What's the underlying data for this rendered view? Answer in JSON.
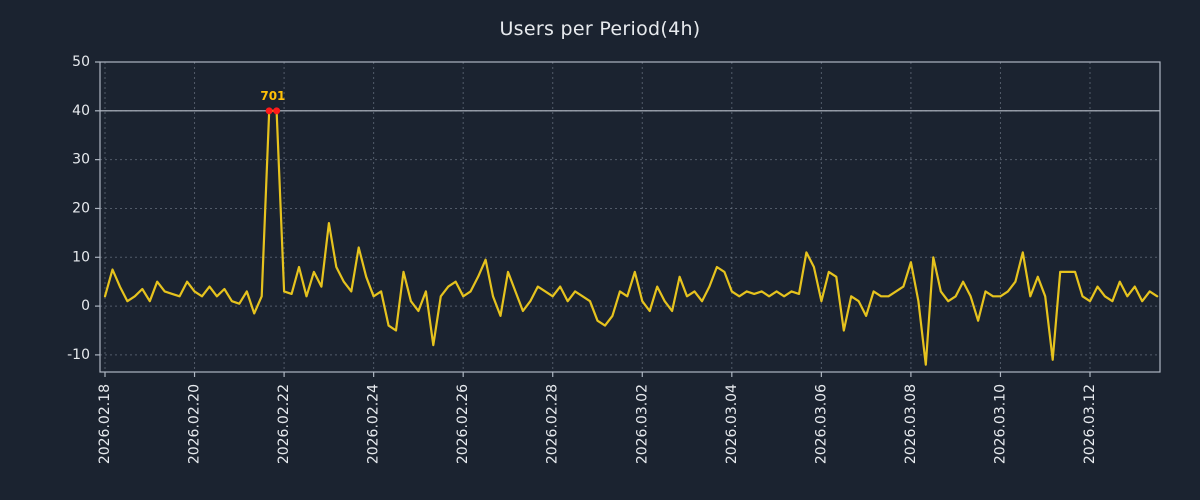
{
  "title": "Users per Period(4h)",
  "colors": {
    "background": "#1b2330",
    "line": "#e6c31e",
    "grid": "#7f8a99",
    "axis": "#aeb6c2",
    "text": "#e7eaee",
    "threshold": "#b9c0ca",
    "marker": "#ff1a1a",
    "annotation": "#ffc107"
  },
  "chart_data": {
    "type": "line",
    "title": "Users per Period(4h)",
    "xlabel": "",
    "ylabel": "",
    "period": "4h",
    "points_per_day": 6,
    "start_date": "2026.02.18",
    "ylim": [
      -13.5,
      50
    ],
    "yticks": [
      -10,
      0,
      10,
      20,
      30,
      40,
      50
    ],
    "xtick_interval_days": 2,
    "xtick_labels": [
      "2026.02.18",
      "2026.02.20",
      "2026.02.22",
      "2026.02.24",
      "2026.02.26",
      "2026.02.28",
      "2026.03.02",
      "2026.03.04",
      "2026.03.06",
      "2026.03.08",
      "2026.03.10",
      "2026.03.12"
    ],
    "clip_max": 40,
    "annotation": {
      "text": "701",
      "value": 701
    },
    "values": [
      2,
      7.5,
      4,
      1,
      2,
      3.5,
      1,
      5,
      3,
      2.5,
      2,
      5,
      3,
      2,
      4,
      2,
      3.5,
      1,
      0.5,
      3,
      -1.5,
      2,
      701,
      701,
      3,
      2.5,
      8,
      2,
      7,
      4,
      17,
      8,
      5,
      3,
      12,
      6,
      2,
      3,
      -4,
      -5,
      7,
      1,
      -1,
      3,
      -8,
      2,
      4,
      5,
      2,
      3,
      6,
      9.5,
      2,
      -2,
      7,
      3,
      -1,
      1,
      4,
      3,
      2,
      4,
      1,
      3,
      2,
      1,
      -3,
      -4,
      -2,
      3,
      2,
      7,
      1,
      -1,
      4,
      1,
      -1,
      6,
      2,
      3,
      1,
      4,
      8,
      7,
      3,
      2,
      3,
      2.5,
      3,
      2,
      3,
      2,
      3,
      2.5,
      11,
      8,
      1,
      7,
      6,
      -5,
      2,
      1,
      -2,
      3,
      2,
      2,
      3,
      4,
      9,
      1,
      -12,
      10,
      3,
      1,
      2,
      5,
      2,
      -3,
      3,
      2,
      2,
      3,
      5,
      11,
      2,
      6,
      2,
      -11,
      7,
      7,
      7,
      2,
      1,
      4,
      2,
      1,
      5,
      2,
      4,
      1,
      3,
      2
    ]
  }
}
